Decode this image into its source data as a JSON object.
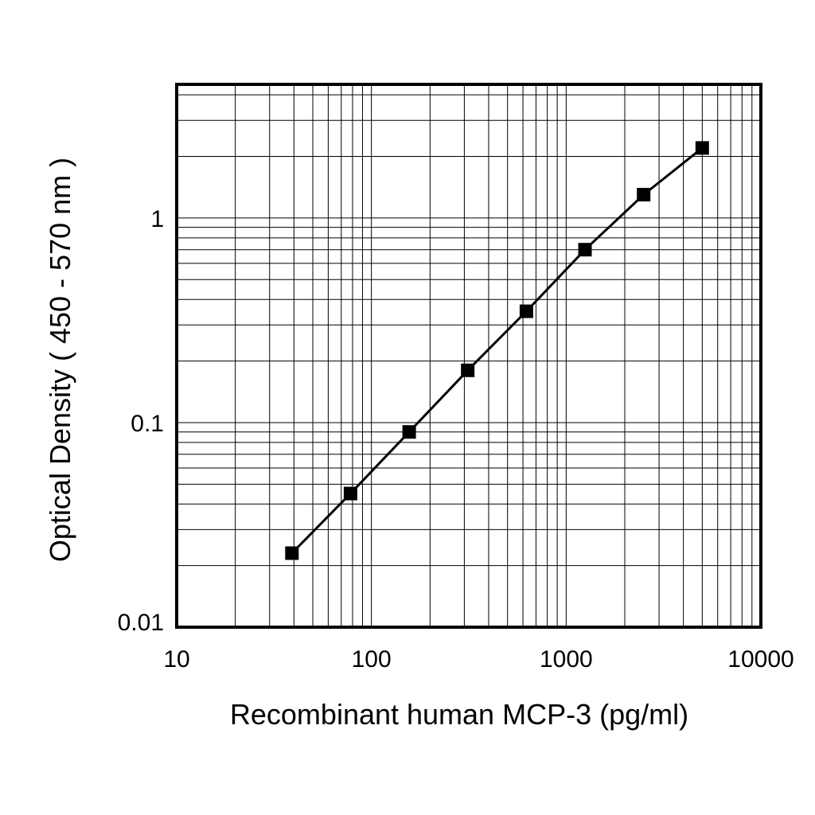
{
  "chart_data": {
    "type": "line",
    "title": "",
    "xlabel": "Recombinant human MCP-3 (pg/ml)",
    "ylabel": "Optical Density ( 450 - 570 nm )",
    "xscale": "log",
    "yscale": "log",
    "xlim": [
      10,
      10000
    ],
    "ylim": [
      0.01,
      4.5
    ],
    "xticks": [
      10,
      100,
      1000,
      10000
    ],
    "xtick_labels": [
      "10",
      "100",
      "1000",
      "10000"
    ],
    "yticks": [
      0.01,
      0.1,
      1
    ],
    "ytick_labels": [
      "0.01",
      "0.1",
      "1"
    ],
    "grid": true,
    "legend": "none",
    "series": [
      {
        "x": [
          39.06,
          78.13,
          156.25,
          312.5,
          625,
          1250,
          2500,
          5000
        ],
        "y": [
          0.023,
          0.045,
          0.09,
          0.18,
          0.35,
          0.7,
          1.3,
          2.2
        ]
      }
    ]
  }
}
